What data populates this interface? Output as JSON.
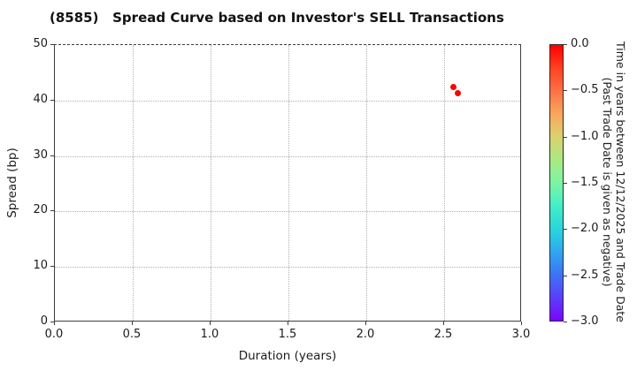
{
  "chart_data": {
    "type": "scatter",
    "title": "(8585)   Spread Curve based on Investor's SELL Transactions",
    "xlabel": "Duration (years)",
    "ylabel": "Spread (bp)",
    "xlim": [
      0.0,
      3.0
    ],
    "ylim": [
      0,
      50
    ],
    "grid": "dotted",
    "legend_position": "none",
    "xticks": {
      "values": [
        0.0,
        0.5,
        1.0,
        1.5,
        2.0,
        2.5,
        3.0
      ],
      "labels": [
        "0.0",
        "0.5",
        "1.0",
        "1.5",
        "2.0",
        "2.5",
        "3.0"
      ]
    },
    "yticks": {
      "values": [
        0,
        10,
        20,
        30,
        40,
        50
      ],
      "labels": [
        "0",
        "10",
        "20",
        "30",
        "40",
        "50"
      ]
    },
    "points": [
      {
        "x": 2.56,
        "y": 42.5,
        "time_years": 0.0,
        "color": "#fb0000"
      },
      {
        "x": 2.59,
        "y": 41.4,
        "time_years": 0.0,
        "color": "#fb0000"
      }
    ],
    "colorbar": {
      "colormap": "rainbow",
      "vmax": 0.0,
      "vmin": -3.0,
      "label_line1": "Time in years between 12/12/2025 and Trade Date",
      "label_line2": "(Past Trade Date is given as negative)",
      "ticks": {
        "values": [
          0.0,
          -0.5,
          -1.0,
          -1.5,
          -2.0,
          -2.5,
          -3.0
        ],
        "labels": [
          "0.0",
          "−0.5",
          "−1.0",
          "−1.5",
          "−2.0",
          "−2.5",
          "−3.0"
        ]
      },
      "gradient_stops": [
        {
          "pos": 0,
          "color": "#ff0000"
        },
        {
          "pos": 8,
          "color": "#ff3f20"
        },
        {
          "pos": 17,
          "color": "#fc7448"
        },
        {
          "pos": 25,
          "color": "#f9a65c"
        },
        {
          "pos": 33,
          "color": "#ddd06e"
        },
        {
          "pos": 42,
          "color": "#a9ea84"
        },
        {
          "pos": 50,
          "color": "#7cf5a4"
        },
        {
          "pos": 58,
          "color": "#46eec7"
        },
        {
          "pos": 67,
          "color": "#2ad5dc"
        },
        {
          "pos": 75,
          "color": "#2fa8ee"
        },
        {
          "pos": 83,
          "color": "#3d75f4"
        },
        {
          "pos": 92,
          "color": "#5b3cf8"
        },
        {
          "pos": 100,
          "color": "#7d03fe"
        }
      ]
    }
  }
}
